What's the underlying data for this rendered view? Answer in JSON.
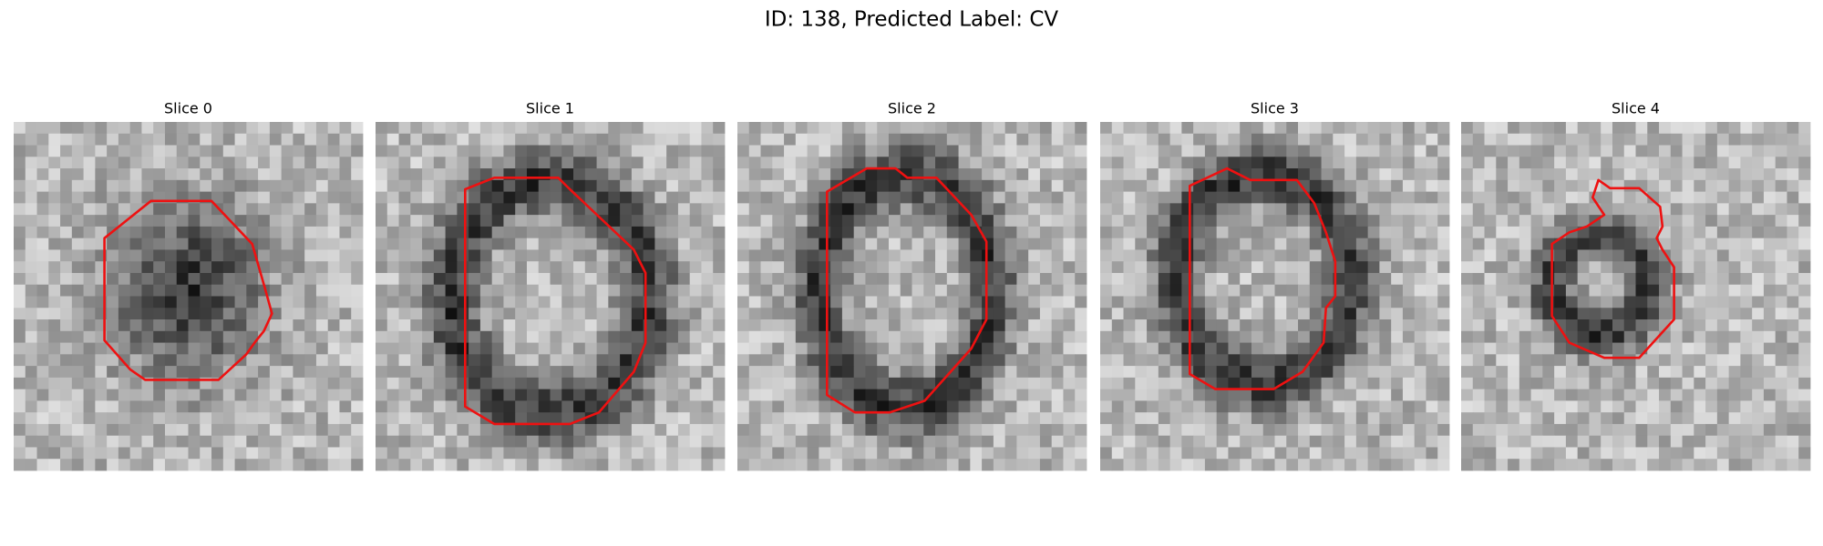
{
  "title": "ID: 138, Predicted Label: CV",
  "panels": [
    {
      "title": "Slice 0"
    },
    {
      "title": "Slice 1"
    },
    {
      "title": "Slice 2"
    },
    {
      "title": "Slice 3"
    },
    {
      "title": "Slice 4"
    }
  ]
}
